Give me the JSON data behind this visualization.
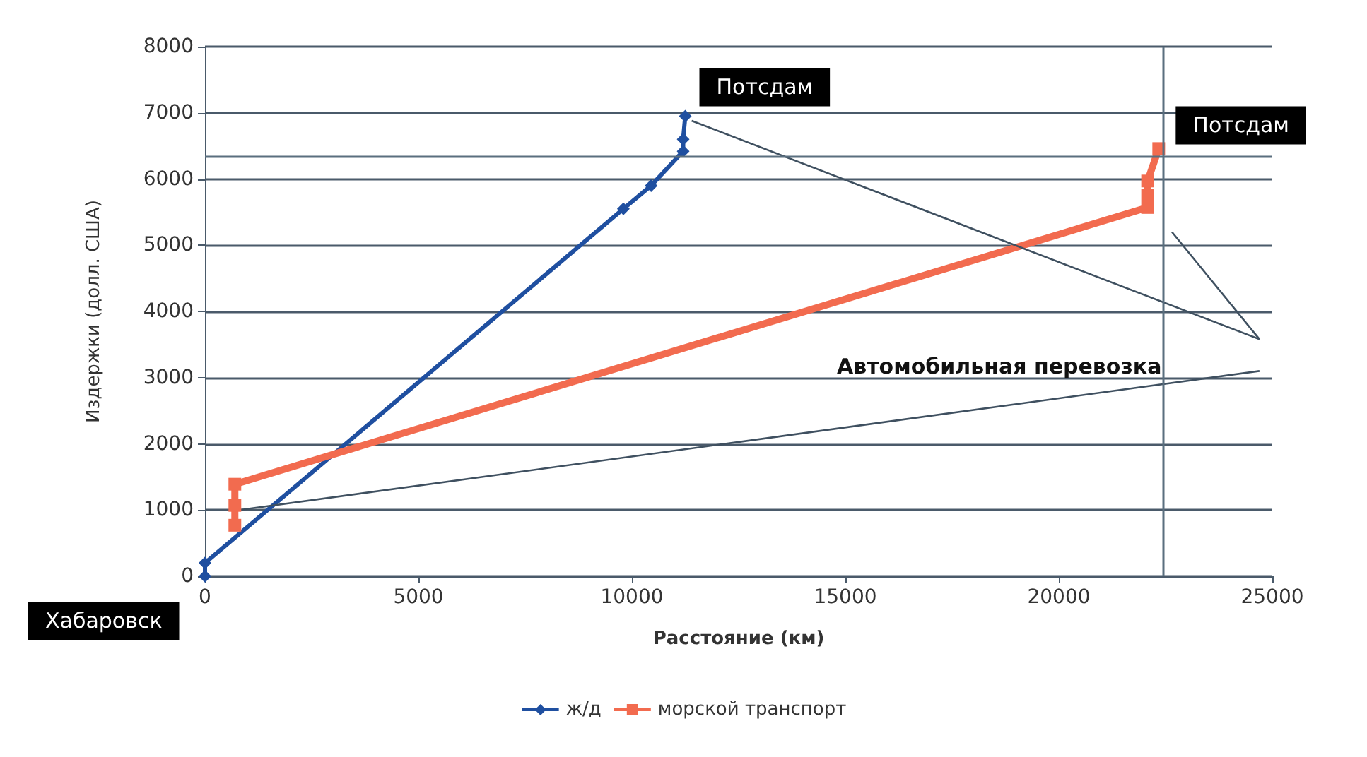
{
  "chart_data": {
    "type": "line",
    "xlabel": "Расстояние (км)",
    "ylabel": "Издержки (долл. США)",
    "xlim": [
      0,
      25000
    ],
    "xticks": [
      0,
      5000,
      10000,
      15000,
      20000,
      25000
    ],
    "ylim": [
      0,
      8000
    ],
    "yticks": [
      0,
      1000,
      2000,
      3000,
      4000,
      5000,
      6000,
      7000,
      8000
    ],
    "grid": "y",
    "legend": "bottom",
    "series": [
      {
        "name": "ж/д",
        "color": "#1f4fa0",
        "marker": "diamond",
        "x": [
          0,
          0,
          9800,
          10450,
          11200,
          11200,
          11250
        ],
        "values": [
          0,
          200,
          5550,
          5900,
          6420,
          6600,
          6950
        ]
      },
      {
        "name": "морской транспорт",
        "color": "#f26b4f",
        "marker": "square",
        "x": [
          700,
          700,
          700,
          22080,
          22080,
          22080,
          22340
        ],
        "values": [
          770,
          1070,
          1390,
          5570,
          5760,
          5970,
          6460
        ]
      },
      {
        "color": "#3f5060",
        "marker": "none",
        "x": [
          11400,
          24700
        ],
        "values": [
          6880,
          3580
        ]
      },
      {
        "color": "#3f5060",
        "marker": "none",
        "x": [
          22650,
          24700
        ],
        "values": [
          5200,
          3580
        ]
      },
      {
        "color": "#3f5060",
        "marker": "none",
        "x": [
          800,
          24700
        ],
        "values": [
          1000,
          3100
        ]
      }
    ],
    "ref_lines": [
      {
        "axis": "y",
        "value": 6350,
        "label": null,
        "color": "#5a6f7f"
      },
      {
        "axis": "x",
        "value": 22450,
        "label": null,
        "color": "#5a6f7f"
      }
    ],
    "annotations": [
      {
        "text": "Потсдам",
        "x": 11250,
        "y": 6950
      },
      {
        "text": "Потсдам",
        "x": 22340,
        "y": 6460
      },
      {
        "text": "Хабаровск",
        "x": 0,
        "y": 0
      },
      "Автомобильная перевозка"
    ]
  }
}
